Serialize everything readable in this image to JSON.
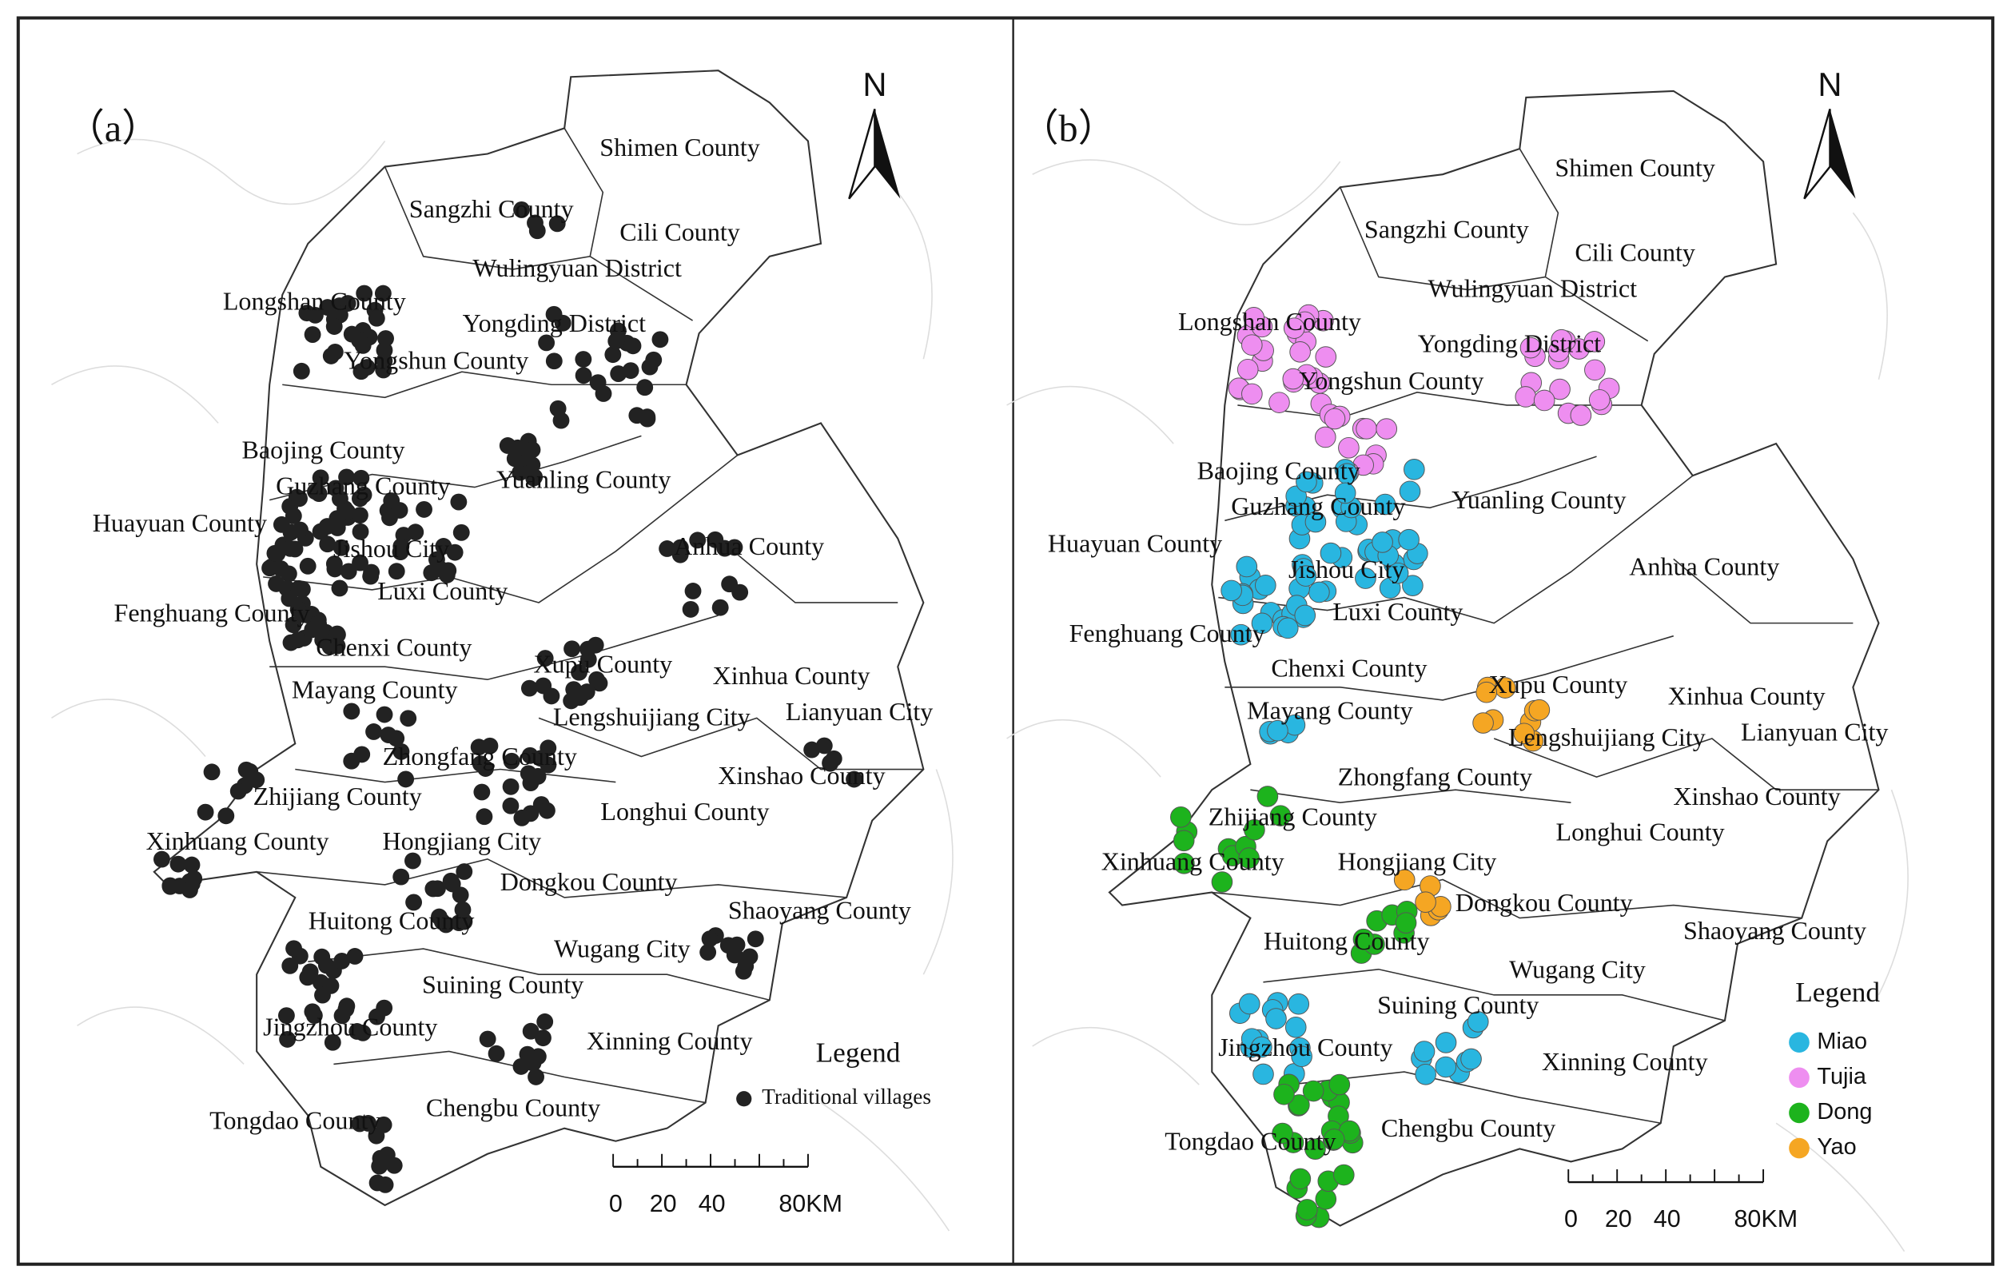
{
  "panels": [
    {
      "label": "（a）",
      "north": "N",
      "counties": [
        "Shimen County",
        "Sangzhi County",
        "Cili County",
        "Wulingyuan District",
        "Longshan County",
        "Yongding District",
        "Yongshun County",
        "Baojing County",
        "Guzhang County",
        "Yuanling County",
        "Huayuan County",
        "Jishou City",
        "Anhua County",
        "Luxi County",
        "Fenghuang County",
        "Chenxi County",
        "Xupu County",
        "Xinhua County",
        "Mayang County",
        "Lengshuijiang City",
        "Lianyuan City",
        "Zhongfang County",
        "Xinshao County",
        "Zhijiang County",
        "Longhui County",
        "Xinhuang County",
        "Hongjiang City",
        "Dongkou County",
        "Shaoyang County",
        "Huitong County",
        "Wugang City",
        "Suining County",
        "Jingzhou County",
        "Xinning County",
        "Tongdao County",
        "Chengbu County"
      ],
      "legend": {
        "title": "Legend",
        "items": [
          {
            "label": "Traditional villages",
            "color": "#222222"
          }
        ]
      },
      "scale": [
        "0",
        "20",
        "40",
        "80KM"
      ]
    },
    {
      "label": "（b）",
      "north": "N",
      "counties": [
        "Shimen County",
        "Sangzhi County",
        "Cili County",
        "Wulingyuan District",
        "Longshan County",
        "Yongding District",
        "Yongshun County",
        "Baojing County",
        "Guzhang County",
        "Yuanling County",
        "Huayuan County",
        "Jishou City",
        "Anhua County",
        "Luxi County",
        "Fenghuang County",
        "Chenxi County",
        "Xupu County",
        "Xinhua County",
        "Mayang County",
        "Lengshuijiang City",
        "Lianyuan City",
        "Zhongfang County",
        "Xinshao County",
        "Zhijiang County",
        "Longhui County",
        "Xinhuang County",
        "Hongjiang City",
        "Dongkou County",
        "Shaoyang County",
        "Huitong County",
        "Wugang City",
        "Suining County",
        "Jingzhou County",
        "Xinning County",
        "Tongdao County",
        "Chengbu County"
      ],
      "legend": {
        "title": "Legend",
        "items": [
          {
            "label": "Miao",
            "color": "#29b6e0"
          },
          {
            "label": "Tujia",
            "color": "#ee8ef0"
          },
          {
            "label": "Dong",
            "color": "#1db31d"
          },
          {
            "label": "Yao",
            "color": "#f5a623"
          }
        ]
      },
      "scale": [
        "0",
        "20",
        "40",
        "80KM"
      ]
    }
  ]
}
